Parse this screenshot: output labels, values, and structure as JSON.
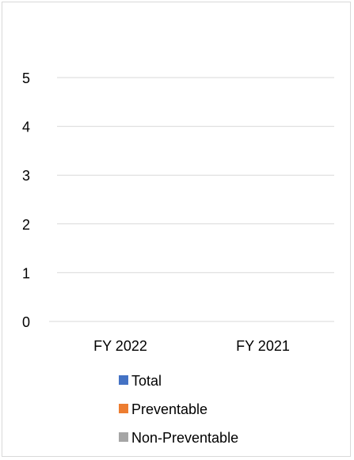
{
  "chart_data": {
    "type": "bar",
    "categories": [
      "FY 2022",
      "FY 2021"
    ],
    "series": [
      {
        "name": "Total",
        "values": [
          0,
          0
        ],
        "color": "#4472c4"
      },
      {
        "name": "Preventable",
        "values": [
          0,
          0
        ],
        "color": "#ed7d31"
      },
      {
        "name": "Non-Preventable",
        "values": [
          0,
          0
        ],
        "color": "#a5a5a5"
      }
    ],
    "y_ticks": [
      "0",
      "1",
      "2",
      "3",
      "4",
      "5"
    ],
    "ylim": [
      0,
      5
    ],
    "grid": true,
    "gridline_color": "#d9d9d9",
    "legend_position": "bottom"
  }
}
